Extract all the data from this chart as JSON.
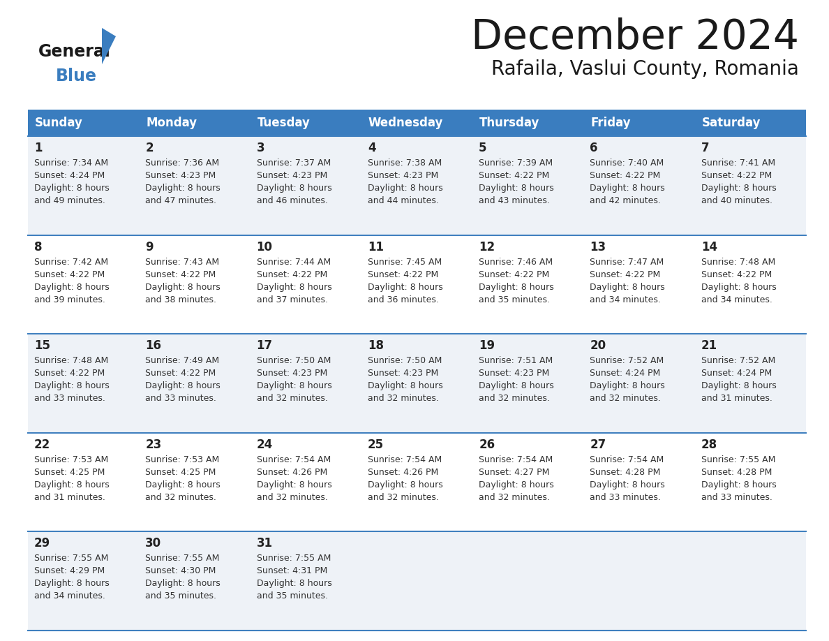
{
  "title": "December 2024",
  "subtitle": "Rafaila, Vaslui County, Romania",
  "header_color": "#3a7dbf",
  "header_text_color": "#ffffff",
  "days_of_week": [
    "Sunday",
    "Monday",
    "Tuesday",
    "Wednesday",
    "Thursday",
    "Friday",
    "Saturday"
  ],
  "cell_bg_even": "#eef2f7",
  "cell_bg_odd": "#ffffff",
  "border_color": "#4080bf",
  "text_color": "#333333",
  "day_num_color": "#222222",
  "title_color": "#1a1a1a",
  "logo_text_color": "#1a1a1a",
  "logo_blue_color": "#3a7dbf",
  "calendar_data": [
    [
      {
        "day": 1,
        "sunrise": "7:34 AM",
        "sunset": "4:24 PM",
        "daylight_hrs": 8,
        "daylight_mins": 49
      },
      {
        "day": 2,
        "sunrise": "7:36 AM",
        "sunset": "4:23 PM",
        "daylight_hrs": 8,
        "daylight_mins": 47
      },
      {
        "day": 3,
        "sunrise": "7:37 AM",
        "sunset": "4:23 PM",
        "daylight_hrs": 8,
        "daylight_mins": 46
      },
      {
        "day": 4,
        "sunrise": "7:38 AM",
        "sunset": "4:23 PM",
        "daylight_hrs": 8,
        "daylight_mins": 44
      },
      {
        "day": 5,
        "sunrise": "7:39 AM",
        "sunset": "4:22 PM",
        "daylight_hrs": 8,
        "daylight_mins": 43
      },
      {
        "day": 6,
        "sunrise": "7:40 AM",
        "sunset": "4:22 PM",
        "daylight_hrs": 8,
        "daylight_mins": 42
      },
      {
        "day": 7,
        "sunrise": "7:41 AM",
        "sunset": "4:22 PM",
        "daylight_hrs": 8,
        "daylight_mins": 40
      }
    ],
    [
      {
        "day": 8,
        "sunrise": "7:42 AM",
        "sunset": "4:22 PM",
        "daylight_hrs": 8,
        "daylight_mins": 39
      },
      {
        "day": 9,
        "sunrise": "7:43 AM",
        "sunset": "4:22 PM",
        "daylight_hrs": 8,
        "daylight_mins": 38
      },
      {
        "day": 10,
        "sunrise": "7:44 AM",
        "sunset": "4:22 PM",
        "daylight_hrs": 8,
        "daylight_mins": 37
      },
      {
        "day": 11,
        "sunrise": "7:45 AM",
        "sunset": "4:22 PM",
        "daylight_hrs": 8,
        "daylight_mins": 36
      },
      {
        "day": 12,
        "sunrise": "7:46 AM",
        "sunset": "4:22 PM",
        "daylight_hrs": 8,
        "daylight_mins": 35
      },
      {
        "day": 13,
        "sunrise": "7:47 AM",
        "sunset": "4:22 PM",
        "daylight_hrs": 8,
        "daylight_mins": 34
      },
      {
        "day": 14,
        "sunrise": "7:48 AM",
        "sunset": "4:22 PM",
        "daylight_hrs": 8,
        "daylight_mins": 34
      }
    ],
    [
      {
        "day": 15,
        "sunrise": "7:48 AM",
        "sunset": "4:22 PM",
        "daylight_hrs": 8,
        "daylight_mins": 33
      },
      {
        "day": 16,
        "sunrise": "7:49 AM",
        "sunset": "4:22 PM",
        "daylight_hrs": 8,
        "daylight_mins": 33
      },
      {
        "day": 17,
        "sunrise": "7:50 AM",
        "sunset": "4:23 PM",
        "daylight_hrs": 8,
        "daylight_mins": 32
      },
      {
        "day": 18,
        "sunrise": "7:50 AM",
        "sunset": "4:23 PM",
        "daylight_hrs": 8,
        "daylight_mins": 32
      },
      {
        "day": 19,
        "sunrise": "7:51 AM",
        "sunset": "4:23 PM",
        "daylight_hrs": 8,
        "daylight_mins": 32
      },
      {
        "day": 20,
        "sunrise": "7:52 AM",
        "sunset": "4:24 PM",
        "daylight_hrs": 8,
        "daylight_mins": 32
      },
      {
        "day": 21,
        "sunrise": "7:52 AM",
        "sunset": "4:24 PM",
        "daylight_hrs": 8,
        "daylight_mins": 31
      }
    ],
    [
      {
        "day": 22,
        "sunrise": "7:53 AM",
        "sunset": "4:25 PM",
        "daylight_hrs": 8,
        "daylight_mins": 31
      },
      {
        "day": 23,
        "sunrise": "7:53 AM",
        "sunset": "4:25 PM",
        "daylight_hrs": 8,
        "daylight_mins": 32
      },
      {
        "day": 24,
        "sunrise": "7:54 AM",
        "sunset": "4:26 PM",
        "daylight_hrs": 8,
        "daylight_mins": 32
      },
      {
        "day": 25,
        "sunrise": "7:54 AM",
        "sunset": "4:26 PM",
        "daylight_hrs": 8,
        "daylight_mins": 32
      },
      {
        "day": 26,
        "sunrise": "7:54 AM",
        "sunset": "4:27 PM",
        "daylight_hrs": 8,
        "daylight_mins": 32
      },
      {
        "day": 27,
        "sunrise": "7:54 AM",
        "sunset": "4:28 PM",
        "daylight_hrs": 8,
        "daylight_mins": 33
      },
      {
        "day": 28,
        "sunrise": "7:55 AM",
        "sunset": "4:28 PM",
        "daylight_hrs": 8,
        "daylight_mins": 33
      }
    ],
    [
      {
        "day": 29,
        "sunrise": "7:55 AM",
        "sunset": "4:29 PM",
        "daylight_hrs": 8,
        "daylight_mins": 34
      },
      {
        "day": 30,
        "sunrise": "7:55 AM",
        "sunset": "4:30 PM",
        "daylight_hrs": 8,
        "daylight_mins": 35
      },
      {
        "day": 31,
        "sunrise": "7:55 AM",
        "sunset": "4:31 PM",
        "daylight_hrs": 8,
        "daylight_mins": 35
      },
      null,
      null,
      null,
      null
    ]
  ]
}
